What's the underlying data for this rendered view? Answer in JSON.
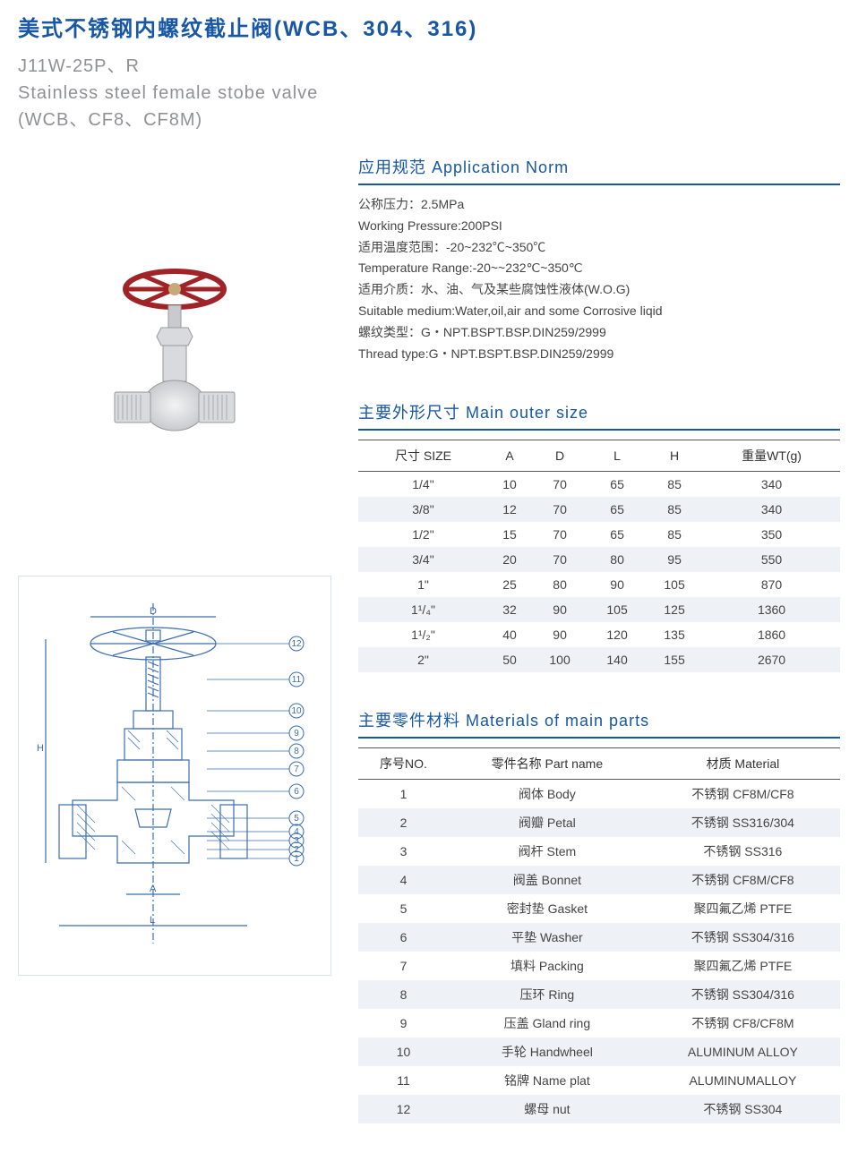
{
  "header": {
    "title_cn": "美式不锈钢内螺纹截止阀(WCB、304、316)",
    "model": "J11W-25P、R",
    "title_en1": "Stainless steel female stobe valve",
    "title_en2": "(WCB、CF8、CF8M)"
  },
  "colors": {
    "primary": "#1757a6",
    "subtitle": "#8f9195",
    "row_alt": "#eef2f7",
    "handwheel": "#a02328",
    "valve_body": "#d8dadd",
    "diagram_line": "#3a6db0"
  },
  "application": {
    "heading": "应用规范  Application Norm",
    "lines": [
      "公称压力：2.5MPa",
      "Working Pressure:200PSI",
      "适用温度范围：-20~232℃~350℃",
      "Temperature Range:-20~~232℃~350℃",
      "适用介质：水、油、气及某些腐蚀性液体(W.O.G)",
      "Suitable medium:Water,oil,air and some Corrosive liqid",
      "螺纹类型：G・NPT.BSPT.BSP.DIN259/2999",
      "Thread type:G・NPT.BSPT.BSP.DIN259/2999"
    ]
  },
  "size_table": {
    "heading": "主要外形尺寸  Main outer size",
    "columns": [
      "尺寸 SIZE",
      "A",
      "D",
      "L",
      "H",
      "重量WT(g)"
    ],
    "rows": [
      [
        "1/4\"",
        "10",
        "70",
        "65",
        "85",
        "340"
      ],
      [
        "3/8\"",
        "12",
        "70",
        "65",
        "85",
        "340"
      ],
      [
        "1/2\"",
        "15",
        "70",
        "65",
        "85",
        "350"
      ],
      [
        "3/4\"",
        "20",
        "70",
        "80",
        "95",
        "550"
      ],
      [
        "1\"",
        "25",
        "80",
        "90",
        "105",
        "870"
      ],
      [
        "1¹/₄\"",
        "32",
        "90",
        "105",
        "125",
        "1360"
      ],
      [
        "1¹/₂\"",
        "40",
        "90",
        "120",
        "135",
        "1860"
      ],
      [
        "2\"",
        "50",
        "100",
        "140",
        "155",
        "2670"
      ]
    ]
  },
  "materials_table": {
    "heading": "主要零件材料  Materials of main parts",
    "columns": [
      "序号NO.",
      "零件名称 Part name",
      "材质 Material"
    ],
    "rows": [
      [
        "1",
        "阀体 Body",
        "不锈钢 CF8M/CF8"
      ],
      [
        "2",
        "阀瓣 Petal",
        "不锈钢 SS316/304"
      ],
      [
        "3",
        "阀杆 Stem",
        "不锈钢 SS316"
      ],
      [
        "4",
        "阀盖 Bonnet",
        "不锈钢 CF8M/CF8"
      ],
      [
        "5",
        "密封垫 Gasket",
        "聚四氟乙烯 PTFE"
      ],
      [
        "6",
        "平垫 Washer",
        "不锈钢 SS304/316"
      ],
      [
        "7",
        "填料 Packing",
        "聚四氟乙烯 PTFE"
      ],
      [
        "8",
        "压环 Ring",
        "不锈钢 SS304/316"
      ],
      [
        "9",
        "压盖 Gland ring",
        "不锈钢 CF8/CF8M"
      ],
      [
        "10",
        "手轮 Handwheel",
        "ALUMINUM ALLOY"
      ],
      [
        "11",
        "铭牌 Name plat",
        "ALUMINUMALLOY"
      ],
      [
        "12",
        "螺母 nut",
        "不锈钢 SS304"
      ]
    ]
  },
  "diagram": {
    "labels": [
      "1",
      "2",
      "3",
      "4",
      "5",
      "6",
      "7",
      "8",
      "9",
      "10",
      "11",
      "12"
    ],
    "dims": [
      "D",
      "H",
      "A",
      "L"
    ]
  }
}
